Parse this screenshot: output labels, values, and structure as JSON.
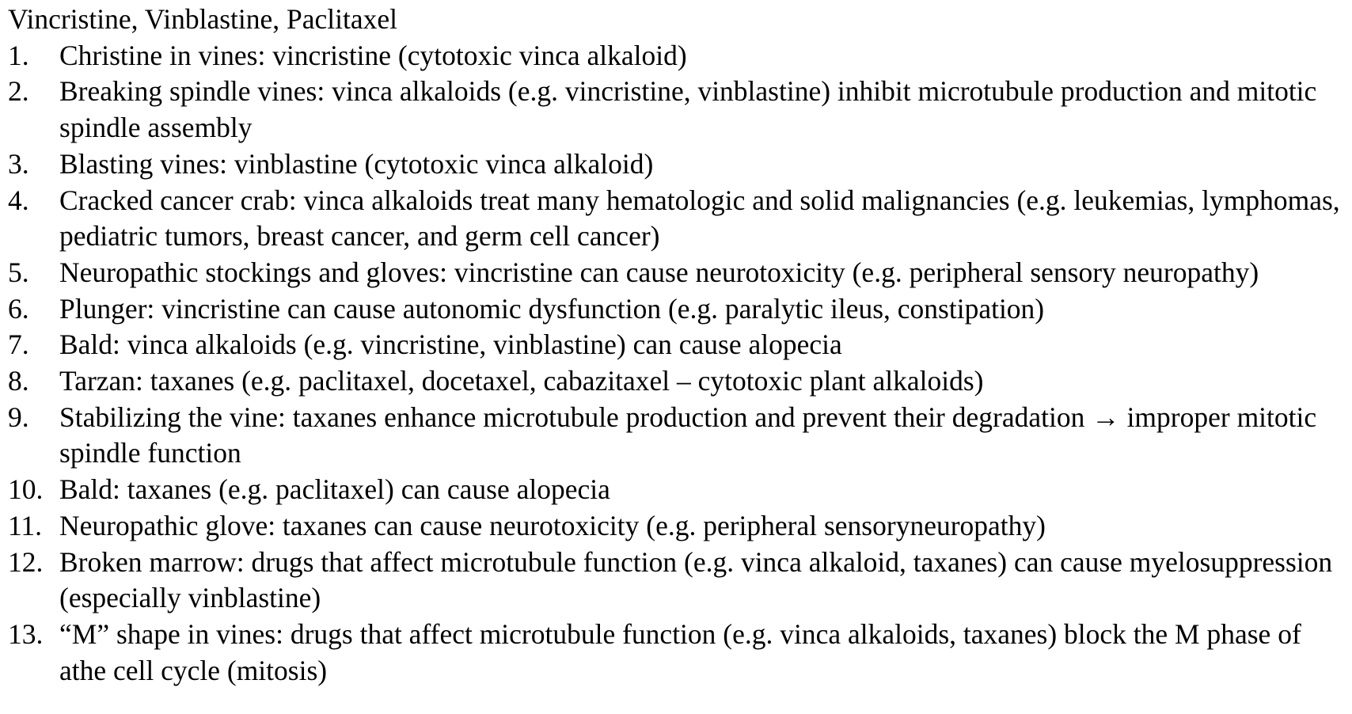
{
  "document": {
    "title": "Vincristine, Vinblastine, Paclitaxel",
    "items": [
      {
        "number": "1.",
        "text": "Christine in vines: vincristine (cytotoxic vinca alkaloid)"
      },
      {
        "number": "2.",
        "text": "Breaking spindle vines: vinca alkaloids (e.g. vincristine, vinblastine) inhibit microtubule production and mitotic spindle assembly"
      },
      {
        "number": "3.",
        "text": "Blasting vines: vinblastine (cytotoxic vinca alkaloid)"
      },
      {
        "number": "4.",
        "text": "Cracked cancer crab: vinca alkaloids treat many hematologic and solid malignancies (e.g. leukemias, lymphomas, pediatric tumors, breast cancer, and germ cell cancer)"
      },
      {
        "number": "5.",
        "text": "Neuropathic stockings and gloves: vincristine can cause neurotoxicity (e.g. peripheral sensory neuropathy)"
      },
      {
        "number": "6.",
        "text": "Plunger: vincristine can cause autonomic dysfunction (e.g. paralytic ileus, constipation)"
      },
      {
        "number": "7.",
        "text": "Bald: vinca alkaloids (e.g. vincristine, vinblastine) can cause alopecia"
      },
      {
        "number": "8.",
        "text": "Tarzan: taxanes (e.g. paclitaxel, docetaxel, cabazitaxel – cytotoxic plant alkaloids)"
      },
      {
        "number": "9.",
        "text": "Stabilizing the vine: taxanes enhance microtubule production and prevent their degradation → improper mitotic spindle function"
      },
      {
        "number": "10.",
        "text": "Bald: taxanes (e.g. paclitaxel) can cause alopecia"
      },
      {
        "number": "11.",
        "text": "Neuropathic glove: taxanes can cause neurotoxicity (e.g. peripheral sensoryneuropathy)"
      },
      {
        "number": "12.",
        "text": "Broken marrow: drugs that affect microtubule function (e.g. vinca alkaloid, taxanes) can cause myelosuppression (especially vinblastine)"
      },
      {
        "number": "13.",
        "text": "“M” shape in vines: drugs that affect microtubule function (e.g. vinca alkaloids, taxanes) block the M phase of athe cell cycle (mitosis)"
      }
    ]
  }
}
